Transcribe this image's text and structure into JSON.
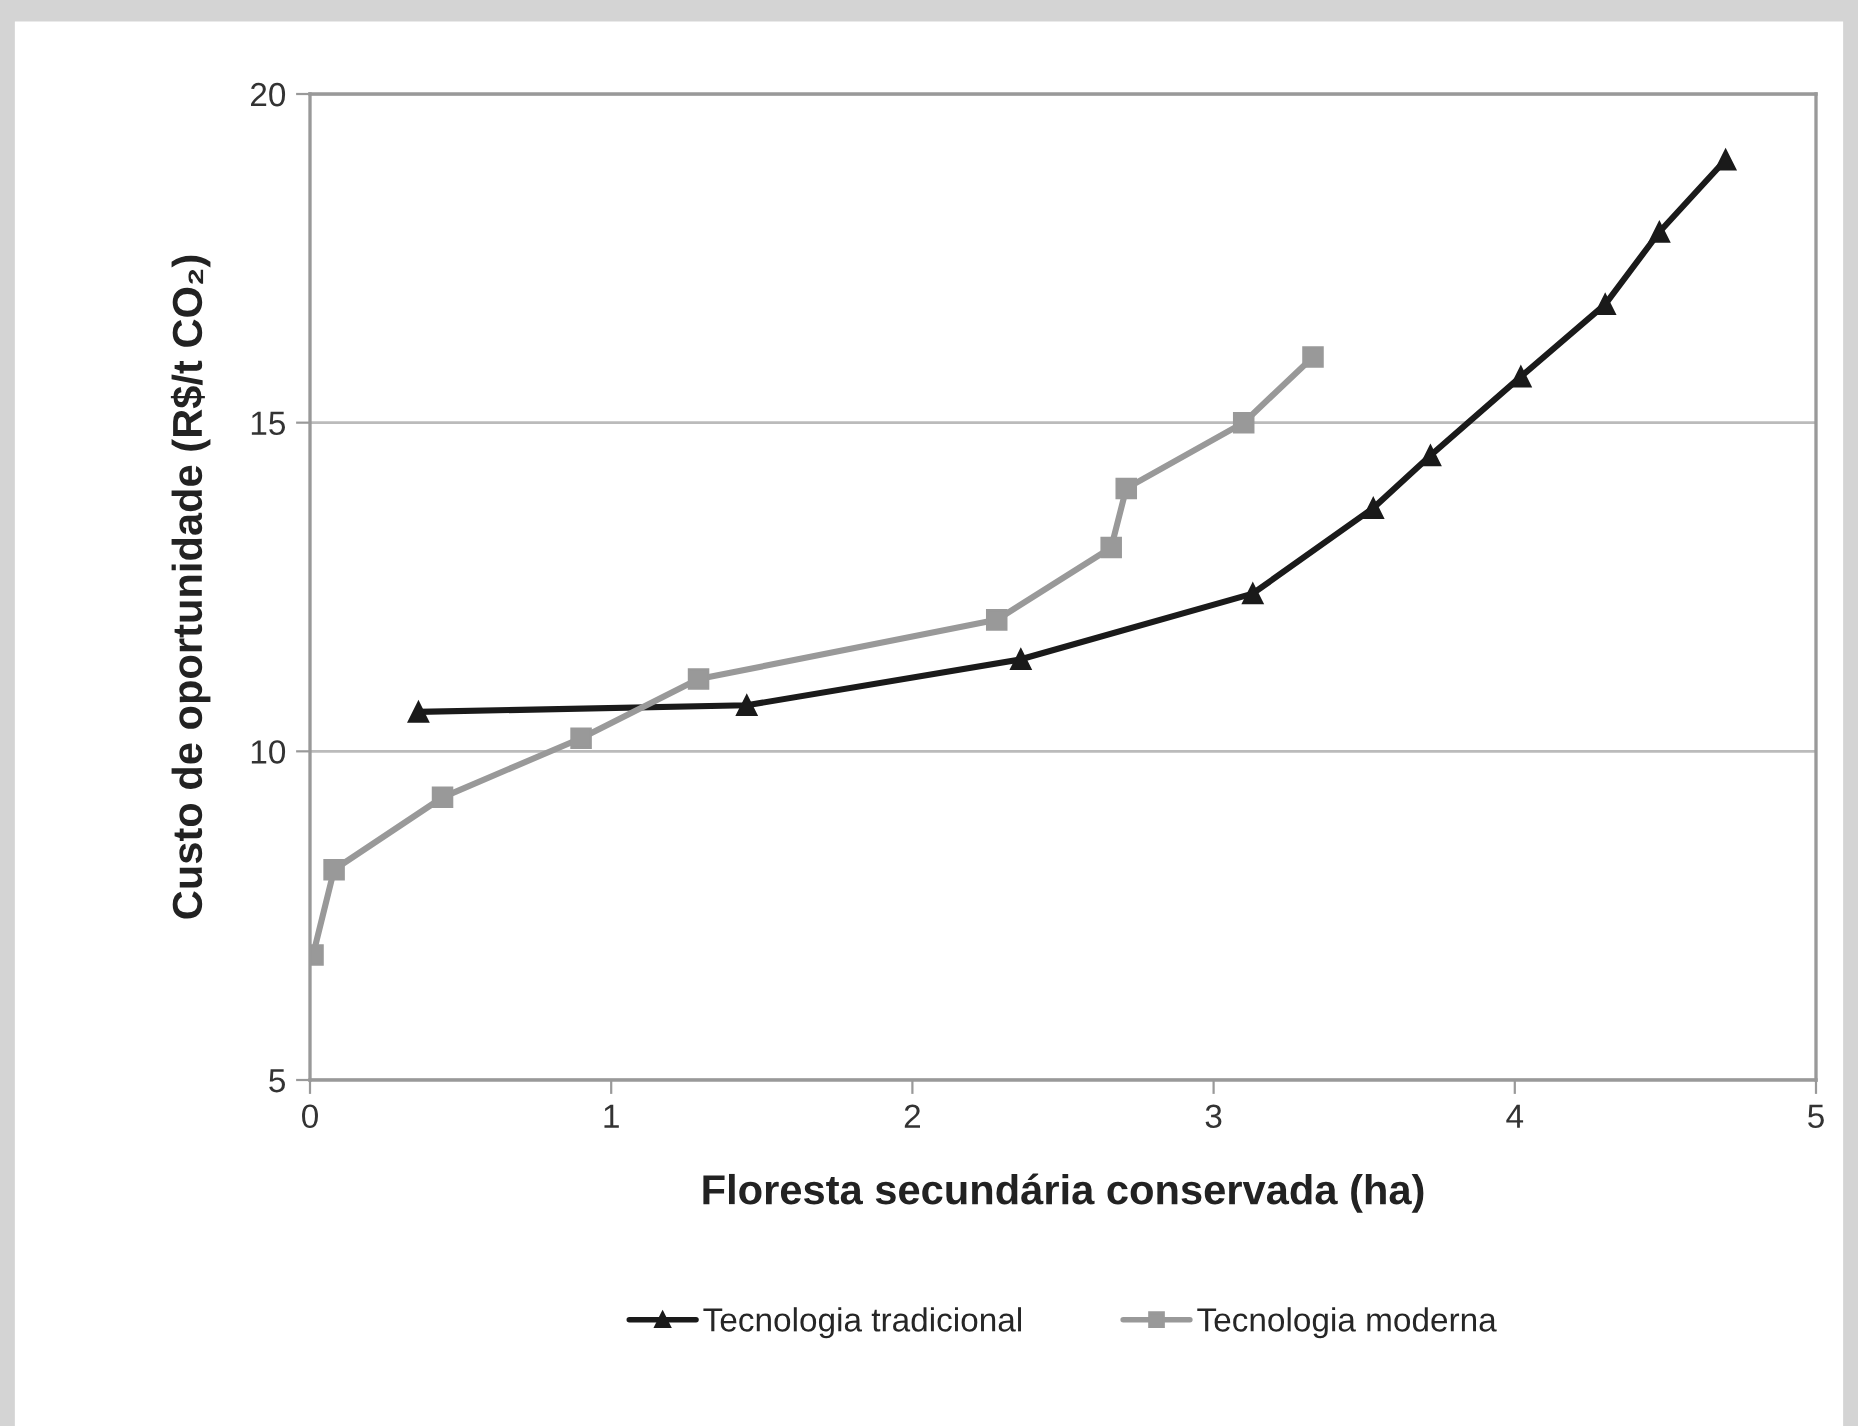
{
  "chart_data": {
    "type": "line",
    "xlabel": "Floresta secundária conservada (ha)",
    "ylabel": "Custo de oportunidade (R$/t CO₂)",
    "xlim": [
      0,
      5
    ],
    "xticks": [
      0,
      1,
      2,
      3,
      4,
      5
    ],
    "ylim": [
      5,
      20
    ],
    "yticks": [
      5,
      10,
      15,
      20
    ],
    "grid": "y",
    "legend": "bottom",
    "series": [
      {
        "name": "Tecnologia tradicional",
        "color": "#1a1a1a",
        "marker": "triangle",
        "x": [
          0.36,
          1.45,
          2.36,
          3.13,
          3.53,
          3.72,
          4.02,
          4.3,
          4.48,
          4.7
        ],
        "values": [
          10.6,
          10.7,
          11.4,
          12.4,
          13.7,
          14.5,
          15.7,
          16.8,
          17.9,
          19.0
        ]
      },
      {
        "name": "Tecnologia moderna",
        "color": "#999999",
        "marker": "square",
        "x": [
          0.01,
          0.08,
          0.44,
          0.9,
          1.29,
          2.28,
          2.66,
          2.71,
          3.1,
          3.33
        ],
        "values": [
          6.9,
          8.2,
          9.3,
          10.2,
          11.1,
          12.0,
          13.1,
          14.0,
          15.0,
          16.0
        ]
      }
    ]
  }
}
